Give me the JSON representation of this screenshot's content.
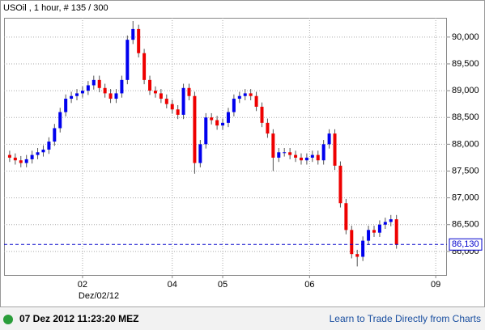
{
  "chart_data": {
    "type": "candlestick",
    "title": "USOil , 1 hour, # 135 / 300",
    "x": [
      0,
      1,
      2,
      3,
      4,
      5,
      6,
      7,
      8,
      9,
      10,
      11,
      12,
      13,
      14,
      15,
      16,
      17,
      18,
      19,
      20,
      21,
      22,
      23,
      24,
      25,
      26,
      27,
      28,
      29,
      30,
      31,
      32,
      33,
      34,
      35,
      36,
      37,
      38,
      39,
      40,
      41,
      42,
      43,
      44,
      45,
      46,
      47,
      48,
      49,
      50,
      51,
      52,
      53,
      54,
      55,
      56,
      57,
      58,
      59,
      60,
      61,
      62,
      63,
      64,
      65,
      66,
      67,
      68,
      69
    ],
    "open": [
      87.8,
      87.75,
      87.7,
      87.65,
      87.72,
      87.8,
      87.85,
      87.9,
      88.05,
      88.3,
      88.6,
      88.85,
      88.9,
      88.95,
      89.0,
      89.1,
      89.2,
      89.05,
      88.95,
      88.85,
      88.95,
      89.2,
      89.95,
      90.15,
      89.7,
      89.2,
      89.0,
      88.95,
      88.85,
      88.75,
      88.65,
      88.55,
      89.05,
      88.9,
      87.65,
      88.0,
      88.5,
      88.45,
      88.35,
      88.4,
      88.6,
      88.85,
      88.9,
      88.95,
      88.9,
      88.7,
      88.4,
      88.2,
      87.75,
      87.85,
      87.85,
      87.8,
      87.75,
      87.7,
      87.75,
      87.8,
      87.7,
      88.0,
      88.2,
      87.6,
      86.9,
      86.4,
      85.95,
      85.9,
      86.2,
      86.4,
      86.35,
      86.5,
      86.55,
      86.6
    ],
    "high": [
      87.88,
      87.83,
      87.78,
      87.8,
      87.88,
      87.93,
      87.98,
      88.13,
      88.38,
      88.68,
      88.93,
      88.98,
      89.03,
      89.08,
      89.18,
      89.28,
      89.28,
      89.13,
      89.03,
      89.03,
      89.28,
      90.03,
      90.3,
      90.23,
      89.78,
      89.28,
      89.08,
      89.03,
      88.93,
      88.83,
      88.73,
      89.13,
      89.13,
      88.98,
      88.08,
      88.58,
      88.58,
      88.53,
      88.48,
      88.68,
      88.93,
      88.98,
      89.03,
      89.03,
      88.98,
      88.78,
      88.48,
      88.28,
      87.93,
      87.93,
      87.93,
      87.88,
      87.83,
      87.83,
      87.88,
      87.88,
      88.08,
      88.28,
      88.28,
      87.68,
      86.98,
      86.48,
      86.03,
      86.28,
      86.48,
      86.48,
      86.58,
      86.63,
      86.68,
      86.68
    ],
    "low": [
      87.67,
      87.62,
      87.57,
      87.57,
      87.64,
      87.72,
      87.77,
      87.82,
      87.97,
      88.22,
      88.52,
      88.77,
      88.82,
      88.87,
      88.92,
      89.02,
      88.97,
      88.87,
      88.77,
      88.77,
      88.87,
      89.12,
      89.87,
      89.62,
      89.12,
      88.92,
      88.87,
      88.77,
      88.67,
      88.57,
      88.47,
      88.47,
      88.82,
      87.45,
      87.57,
      87.92,
      88.37,
      88.27,
      88.27,
      88.32,
      88.52,
      88.77,
      88.82,
      88.82,
      88.62,
      88.32,
      88.12,
      87.5,
      87.67,
      87.77,
      87.72,
      87.67,
      87.62,
      87.62,
      87.67,
      87.62,
      87.62,
      87.92,
      87.52,
      86.82,
      86.32,
      85.87,
      85.72,
      85.82,
      86.12,
      86.27,
      86.27,
      86.42,
      86.47,
      86.05
    ],
    "close": [
      87.75,
      87.7,
      87.65,
      87.72,
      87.8,
      87.85,
      87.9,
      88.05,
      88.3,
      88.6,
      88.85,
      88.9,
      88.95,
      89.0,
      89.1,
      89.2,
      89.05,
      88.95,
      88.85,
      88.95,
      89.2,
      89.95,
      90.15,
      89.7,
      89.2,
      89.0,
      88.95,
      88.85,
      88.75,
      88.65,
      88.55,
      89.05,
      88.9,
      87.65,
      88.0,
      88.5,
      88.45,
      88.35,
      88.4,
      88.6,
      88.85,
      88.9,
      88.95,
      88.9,
      88.7,
      88.4,
      88.2,
      87.75,
      87.85,
      87.85,
      87.8,
      87.75,
      87.7,
      87.75,
      87.8,
      87.7,
      88.0,
      88.2,
      87.6,
      86.9,
      86.4,
      85.95,
      85.9,
      86.2,
      86.4,
      86.35,
      86.5,
      86.55,
      86.6,
      86.13
    ],
    "up_color": "#0000ee",
    "down_color": "#ee0000",
    "xlim": [
      -1,
      78
    ],
    "xticks": [
      {
        "value": 13,
        "label": "02"
      },
      {
        "value": 29,
        "label": "04"
      },
      {
        "value": 38,
        "label": "05"
      },
      {
        "value": 53.5,
        "label": "06"
      },
      {
        "value": 76,
        "label": "09"
      }
    ],
    "date_label": "Dez/02/12",
    "ylim": [
      85.56,
      90.36
    ],
    "yticks": [
      {
        "value": 86,
        "label": "86,000"
      },
      {
        "value": 86.5,
        "label": "86,500"
      },
      {
        "value": 87,
        "label": "87,000"
      },
      {
        "value": 87.5,
        "label": "87,500"
      },
      {
        "value": 88,
        "label": "88,000"
      },
      {
        "value": 88.5,
        "label": "88,500"
      },
      {
        "value": 89,
        "label": "89,000"
      },
      {
        "value": 89.5,
        "label": "89,500"
      },
      {
        "value": 90,
        "label": "90,000"
      }
    ],
    "grid": true,
    "last_price": {
      "value": 86.13,
      "label": "86,130",
      "color": "#0000cc"
    }
  },
  "footer": {
    "timestamp": "07 Dez 2012 11:23:20 MEZ",
    "link": "Learn to Trade Directly from Charts"
  }
}
